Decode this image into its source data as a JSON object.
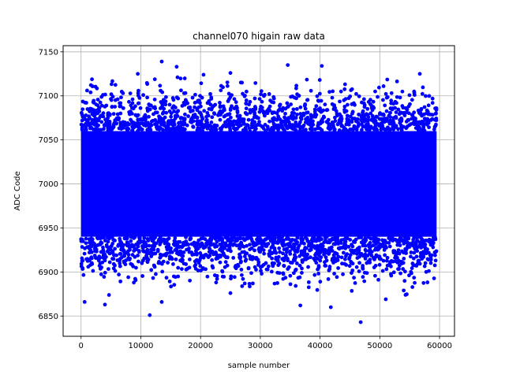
{
  "chart_data": {
    "type": "scatter",
    "title": "channel070 higain raw data",
    "xlabel": "sample number",
    "ylabel": "ADC Code",
    "xlim": [
      -3000,
      62500
    ],
    "ylim": [
      6827,
      7157
    ],
    "xticks": [
      0,
      10000,
      20000,
      30000,
      40000,
      50000,
      60000
    ],
    "yticks": [
      6850,
      6900,
      6950,
      7000,
      7050,
      7100,
      7150
    ],
    "grid": true,
    "marker_color": "#0000ff",
    "x_range": [
      0,
      59500
    ],
    "band": {
      "core_low": 6940,
      "core_high": 7060,
      "center": 7000
    },
    "outliers": [
      {
        "x": 13500,
        "y": 7139
      },
      {
        "x": 16000,
        "y": 7133
      },
      {
        "x": 34600,
        "y": 7135
      },
      {
        "x": 40300,
        "y": 7134
      },
      {
        "x": 56700,
        "y": 7125
      },
      {
        "x": 9500,
        "y": 7125
      },
      {
        "x": 20500,
        "y": 7124
      },
      {
        "x": 25000,
        "y": 7126
      },
      {
        "x": 11500,
        "y": 6851
      },
      {
        "x": 4000,
        "y": 6863
      },
      {
        "x": 13500,
        "y": 6866
      },
      {
        "x": 600,
        "y": 6866
      },
      {
        "x": 36700,
        "y": 6862
      },
      {
        "x": 41800,
        "y": 6860
      },
      {
        "x": 46800,
        "y": 6843
      },
      {
        "x": 51000,
        "y": 6869
      },
      {
        "x": 25000,
        "y": 6876
      },
      {
        "x": 54000,
        "y": 6879
      }
    ]
  }
}
